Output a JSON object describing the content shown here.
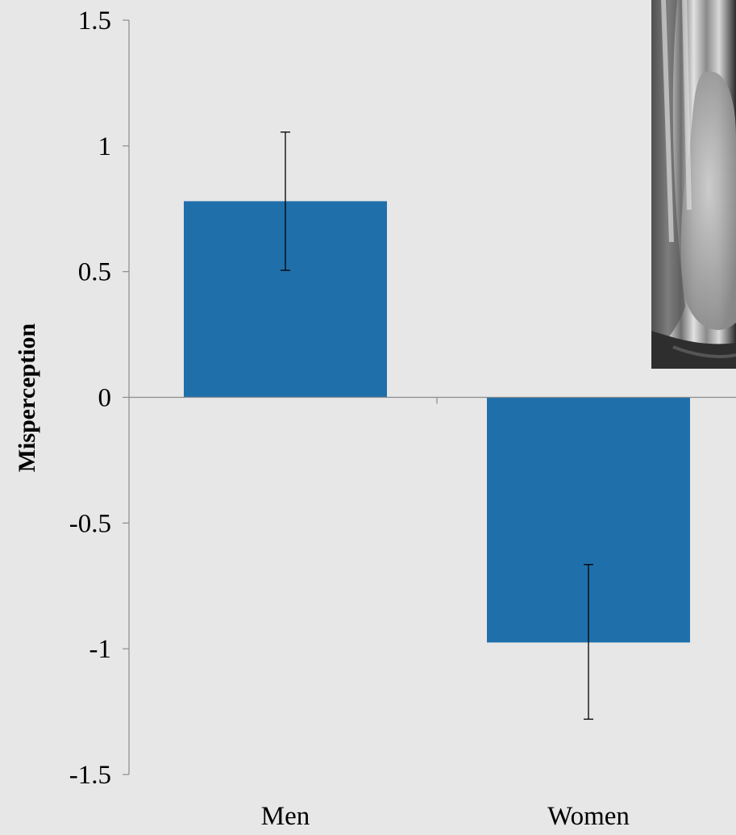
{
  "chart_data": {
    "type": "bar",
    "title": "",
    "xlabel": "",
    "ylabel": "Misperception",
    "categories": [
      "Men",
      "Women"
    ],
    "series": [
      {
        "values": [
          0.78,
          -0.975
        ],
        "error_low": [
          0.505,
          -1.28
        ],
        "error_high": [
          1.055,
          -0.665
        ]
      }
    ],
    "ylim": [
      -1.5,
      1.5
    ],
    "yticks": [
      1.5,
      1,
      0.5,
      0,
      -0.5,
      -1,
      -1.5
    ],
    "ytick_labels": [
      "1.5",
      "1",
      "0.5",
      "0",
      "-0.5",
      "-1",
      "-1.5"
    ],
    "grid": false,
    "legend": "none",
    "colors": {
      "bar": "#1f6fab",
      "background": "#e7e7e7",
      "axis": "#8c8c8c",
      "error_bar": "#000000"
    },
    "inset_image": "grayscale-portrait-photo"
  }
}
